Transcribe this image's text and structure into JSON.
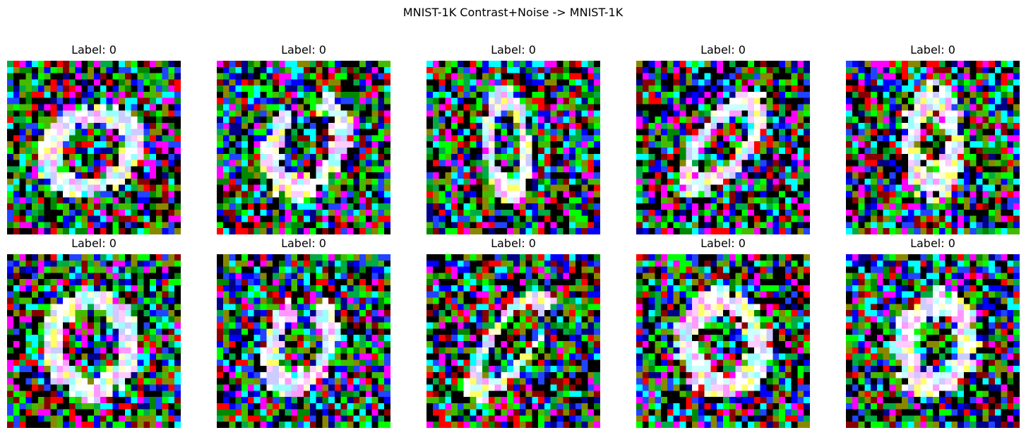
{
  "figure": {
    "title": "MNIST-1K Contrast+Noise -> MNIST-1K"
  },
  "panels": [
    {
      "label": "Label: 0",
      "digit": "0",
      "shape": "tilted-wide"
    },
    {
      "label": "Label: 0",
      "digit": "0",
      "shape": "open-left"
    },
    {
      "label": "Label: 0",
      "digit": "0",
      "shape": "narrow-tall"
    },
    {
      "label": "Label: 0",
      "digit": "0",
      "shape": "slanted-right"
    },
    {
      "label": "Label: 0",
      "digit": "0",
      "shape": "thick-tall"
    },
    {
      "label": "Label: 0",
      "digit": "0",
      "shape": "round"
    },
    {
      "label": "Label: 0",
      "digit": "0",
      "shape": "small-round"
    },
    {
      "label": "Label: 0",
      "digit": "0",
      "shape": "slanted-open"
    },
    {
      "label": "Label: 0",
      "digit": "0",
      "shape": "round-thick"
    },
    {
      "label": "Label: 0",
      "digit": "0",
      "shape": "round-tilted"
    }
  ],
  "style": {
    "noise_colors": [
      "#000000",
      "#000000",
      "#000000",
      "#ff0000",
      "#00ff00",
      "#0000ff",
      "#008800",
      "#880000",
      "#000088",
      "#44bb00",
      "#00aa44",
      "#ff00ff",
      "#00ffff",
      "#888800",
      "#2244ff"
    ],
    "stroke_colors": [
      "#ffffff",
      "#ffffff",
      "#ffccff",
      "#ccffff",
      "#ffffcc",
      "#ff99ff",
      "#99ffff",
      "#ffff66",
      "#ccccff"
    ]
  }
}
